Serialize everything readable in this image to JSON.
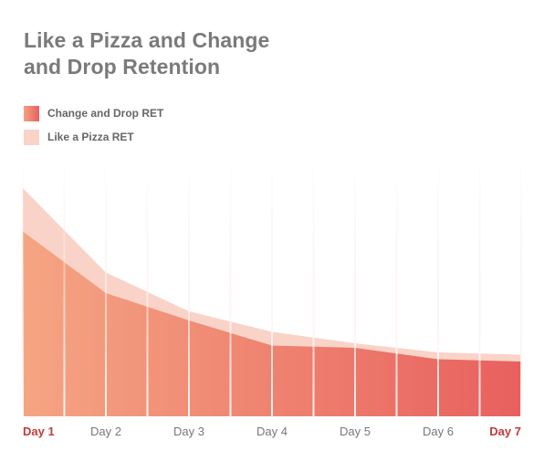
{
  "title_lines": [
    "Like a Pizza and Change",
    "and Drop Retention"
  ],
  "legend": [
    {
      "label": "Change and Drop RET",
      "color": "#e8605e"
    },
    {
      "label": "Like a Pizza RET",
      "color": "#f9d3c8"
    }
  ],
  "colors": {
    "highlight_tick": "#c43a3a",
    "tick": "#777777",
    "gradient_start": "#f5a583",
    "gradient_end": "#e8605e",
    "back_area": "#f9d3c8"
  },
  "chart_data": {
    "type": "area",
    "categories": [
      "Day 1",
      "Day 2",
      "Day 3",
      "Day 4",
      "Day 5",
      "Day 6",
      "Day 7"
    ],
    "highlighted_categories": [
      "Day 1",
      "Day 7"
    ],
    "series": [
      {
        "name": "Like a Pizza RET",
        "values": [
          100,
          63,
          46,
          37,
          32,
          28,
          27
        ]
      },
      {
        "name": "Change and Drop RET",
        "values": [
          81,
          54,
          42,
          31,
          30,
          25,
          24
        ]
      }
    ],
    "ylim": [
      0,
      100
    ],
    "grid": "vertical",
    "legend_position": "top-left"
  }
}
